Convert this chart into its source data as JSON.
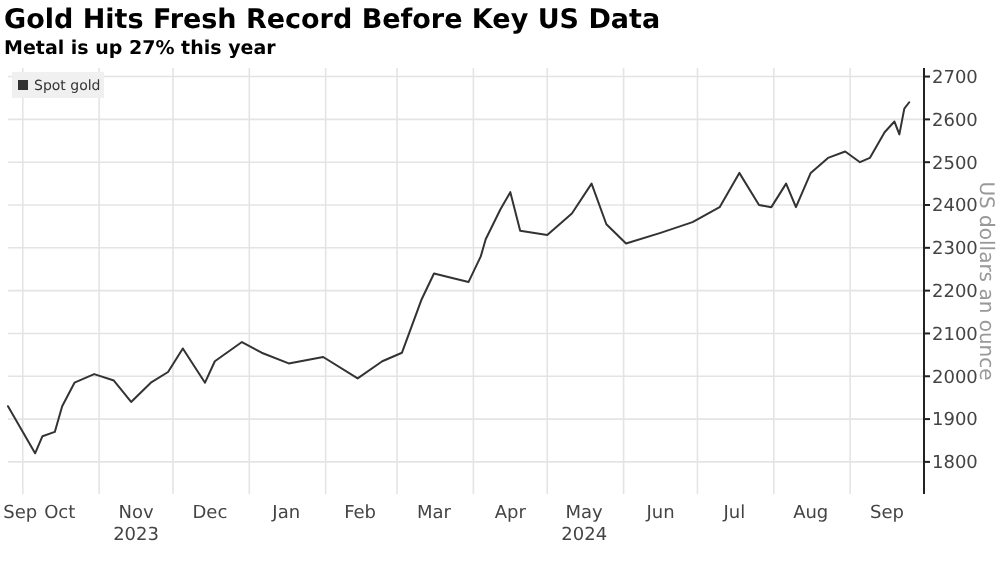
{
  "chart_data": {
    "type": "line",
    "title": "Gold Hits Fresh Record Before Key US Data",
    "subtitle": "Metal is up 27% this year",
    "ylabel": "US dollars an ounce",
    "legend": "top left",
    "grid": true,
    "marker": "none",
    "line_style": "solid",
    "xlim": [
      "2023-09-25",
      "2024-10-01"
    ],
    "xticks": [
      {
        "value": "2023-09-30",
        "label": "Sep"
      },
      {
        "value": "2023-10-01",
        "label": null
      },
      {
        "value": "2023-10-16",
        "label": "Oct"
      },
      {
        "value": "2023-11-01",
        "label": null
      },
      {
        "value": "2023-11-16",
        "label": "Nov\n2023"
      },
      {
        "value": "2023-12-01",
        "label": null
      },
      {
        "value": "2023-12-16",
        "label": "Dec"
      },
      {
        "value": "2024-01-01",
        "label": null
      },
      {
        "value": "2024-01-16",
        "label": "Jan"
      },
      {
        "value": "2024-02-01",
        "label": null
      },
      {
        "value": "2024-02-15",
        "label": "Feb"
      },
      {
        "value": "2024-03-01",
        "label": null
      },
      {
        "value": "2024-03-16",
        "label": "Mar"
      },
      {
        "value": "2024-04-01",
        "label": null
      },
      {
        "value": "2024-04-16",
        "label": "Apr"
      },
      {
        "value": "2024-05-01",
        "label": null
      },
      {
        "value": "2024-05-16",
        "label": "May\n2024"
      },
      {
        "value": "2024-06-01",
        "label": null
      },
      {
        "value": "2024-06-16",
        "label": "Jun"
      },
      {
        "value": "2024-07-01",
        "label": null
      },
      {
        "value": "2024-07-16",
        "label": "Jul"
      },
      {
        "value": "2024-08-01",
        "label": null
      },
      {
        "value": "2024-08-16",
        "label": "Aug"
      },
      {
        "value": "2024-09-01",
        "label": null
      },
      {
        "value": "2024-09-16",
        "label": "Sep"
      }
    ],
    "ylim": [
      1725,
      2720
    ],
    "yticks": [
      1800,
      1900,
      2000,
      2100,
      2200,
      2300,
      2400,
      2500,
      2600,
      2700
    ],
    "x": [
      "2023-09-25",
      "2023-10-06",
      "2023-10-09",
      "2023-10-14",
      "2023-10-17",
      "2023-10-22",
      "2023-10-30",
      "2023-11-07",
      "2023-11-14",
      "2023-11-22",
      "2023-11-29",
      "2023-12-05",
      "2023-12-14",
      "2023-12-18",
      "2023-12-29",
      "2024-01-06",
      "2024-01-17",
      "2024-01-31",
      "2024-02-14",
      "2024-02-24",
      "2024-03-03",
      "2024-03-11",
      "2024-03-16",
      "2024-03-30",
      "2024-04-04",
      "2024-04-06",
      "2024-04-12",
      "2024-04-16",
      "2024-04-20",
      "2024-05-01",
      "2024-05-11",
      "2024-05-19",
      "2024-05-25",
      "2024-06-02",
      "2024-06-16",
      "2024-06-29",
      "2024-07-10",
      "2024-07-18",
      "2024-07-26",
      "2024-07-31",
      "2024-08-06",
      "2024-08-10",
      "2024-08-16",
      "2024-08-23",
      "2024-08-30",
      "2024-09-05",
      "2024-09-09",
      "2024-09-15",
      "2024-09-19",
      "2024-09-21",
      "2024-09-23",
      "2024-09-25"
    ],
    "series": [
      {
        "name": "Spot gold",
        "color": "#333333",
        "values": [
          1930,
          1820,
          1860,
          1870,
          1930,
          1985,
          2005,
          1990,
          1940,
          1985,
          2010,
          2065,
          1985,
          2035,
          2080,
          2055,
          2030,
          2045,
          1995,
          2035,
          2055,
          2180,
          2240,
          2220,
          2280,
          2320,
          2390,
          2430,
          2340,
          2330,
          2380,
          2450,
          2355,
          2310,
          2335,
          2360,
          2395,
          2475,
          2400,
          2395,
          2450,
          2395,
          2475,
          2510,
          2525,
          2500,
          2510,
          2570,
          2595,
          2565,
          2625,
          2640
        ]
      }
    ]
  }
}
